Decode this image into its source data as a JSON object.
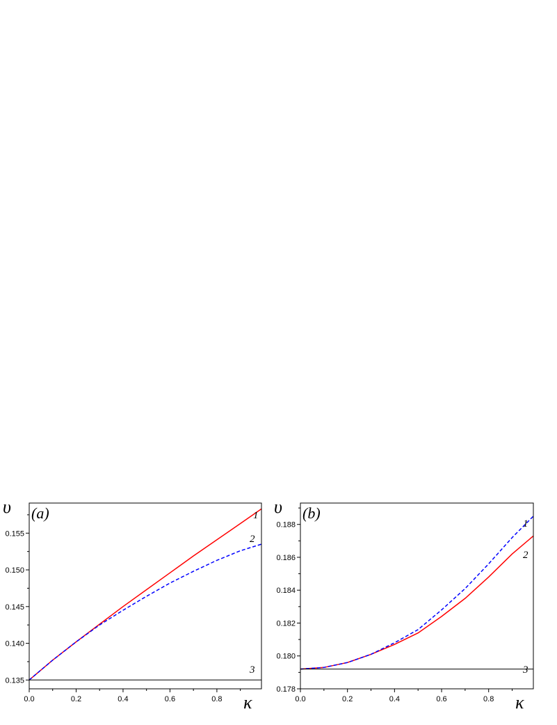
{
  "chart_data": [
    {
      "type": "line",
      "panel_label": "(a)",
      "ylabel": "υ",
      "xlabel": "κ",
      "xlim": [
        0.0,
        0.99
      ],
      "ylim": [
        0.1338,
        0.1591
      ],
      "xticks": [
        0.0,
        0.2,
        0.4,
        0.6,
        0.8
      ],
      "xtick_labels": [
        "0.0",
        "0.2",
        "0.4",
        "0.6",
        "0.8"
      ],
      "yticks": [
        0.135,
        0.14,
        0.145,
        0.15,
        0.155
      ],
      "ytick_labels": [
        "0.135",
        "0.140",
        "0.145",
        "0.150",
        "0.155"
      ],
      "grid": false,
      "series": [
        {
          "name": "1",
          "color": "#ff0000",
          "style": "solid",
          "x": [
            0.0,
            0.1,
            0.2,
            0.3,
            0.4,
            0.5,
            0.6,
            0.7,
            0.8,
            0.9,
            0.99
          ],
          "y": [
            0.135,
            0.1377,
            0.1402,
            0.1426,
            0.145,
            0.1473,
            0.1496,
            0.1519,
            0.1541,
            0.1563,
            0.1583
          ]
        },
        {
          "name": "2",
          "color": "#0000ff",
          "style": "dashed",
          "x": [
            0.0,
            0.1,
            0.2,
            0.3,
            0.4,
            0.5,
            0.6,
            0.7,
            0.8,
            0.9,
            0.99
          ],
          "y": [
            0.135,
            0.1377,
            0.1402,
            0.1425,
            0.1445,
            0.1464,
            0.1482,
            0.1498,
            0.1513,
            0.1526,
            0.1535
          ]
        },
        {
          "name": "3",
          "color": "#000000",
          "style": "solid",
          "x": [
            0.0,
            0.99
          ],
          "y": [
            0.135,
            0.135
          ]
        }
      ]
    },
    {
      "type": "line",
      "panel_label": "(b)",
      "ylabel": "υ",
      "xlabel": "κ",
      "xlim": [
        0.0,
        0.99
      ],
      "ylim": [
        0.178,
        0.1893
      ],
      "xticks": [
        0.0,
        0.2,
        0.4,
        0.6,
        0.8
      ],
      "xtick_labels": [
        "0.0",
        "0.2",
        "0.4",
        "0.6",
        "0.8"
      ],
      "yticks": [
        0.178,
        0.18,
        0.182,
        0.184,
        0.186,
        0.188
      ],
      "ytick_labels": [
        "0.178",
        "0.180",
        "0.182",
        "0.184",
        "0.186",
        "0.188"
      ],
      "grid": false,
      "series": [
        {
          "name": "1",
          "color": "#ff0000",
          "style": "solid",
          "x": [
            0.0,
            0.1,
            0.2,
            0.3,
            0.4,
            0.5,
            0.6,
            0.7,
            0.8,
            0.9,
            0.99
          ],
          "y": [
            0.1792,
            0.1793,
            0.1796,
            0.1801,
            0.1807,
            0.1814,
            0.1824,
            0.1835,
            0.1848,
            0.1862,
            0.1873
          ]
        },
        {
          "name": "2",
          "color": "#0000ff",
          "style": "dashed",
          "x": [
            0.0,
            0.1,
            0.2,
            0.3,
            0.4,
            0.5,
            0.6,
            0.7,
            0.8,
            0.9,
            0.99
          ],
          "y": [
            0.1792,
            0.1793,
            0.1796,
            0.1801,
            0.1808,
            0.1816,
            0.1828,
            0.1841,
            0.1856,
            0.1872,
            0.1885
          ]
        },
        {
          "name": "3",
          "color": "#000000",
          "style": "solid",
          "x": [
            0.0,
            0.99
          ],
          "y": [
            0.1792,
            0.1792
          ]
        }
      ]
    }
  ]
}
